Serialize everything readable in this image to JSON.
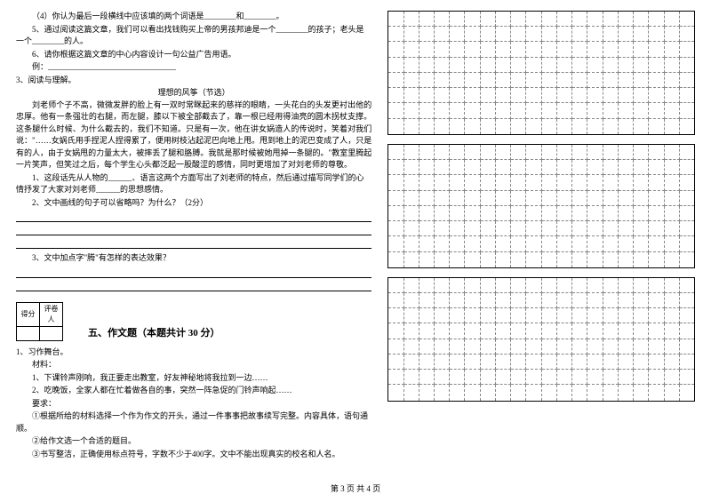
{
  "reading1": {
    "q4": "（4）你认为最后一段横线中应该填的两个词语是________和________。",
    "q5": "5、通过阅读这篇文章，我们可以看出找钱购买上帝的男孩邦迪是一个________的孩子；老头是一个________的人。",
    "q6": "6、请你根据这篇文章的中心内容设计一句公益广告用语。",
    "example": "例：________________________________"
  },
  "reading2": {
    "heading": "3、阅读与理解。",
    "title": "理想的风筝（节选）",
    "body": "刘老师个子不高，微微发胖的脸上有一双时常眯起来的慈祥的眼睛，一头花白的头发更衬出他的忠厚。他有一条强壮的右腿，而左腿，膝以下被全部截去了，靠一根已经用得油亮的圆木拐杖支撑。这条腿什么时候、为什么截去的，我们不知道。只是有一次，他在讲女娲造人的传说时，笑着对我们说：\"……女娲氏用手捏泥人捏得累了，便用树枝沾起泥巴向地上甩。甩到地上的泥巴变成了人，只是有的人，由于女娲甩的力量太大，被摔丢了腿和胳膊。我就是那时候被她甩掉一条腿的。\"教室里腾起一片笑声，但笑过之后，每个学生心头都泛起一股酸涩的感情，同时更增加了对刘老师的尊敬。",
    "q1": "1、这段话先从人物的______、语言这两个方面写出了刘老师的特点，然后通过描写同学们的心情抒发了大家对刘老师______的思想感情。",
    "q2": "2、文中画线的句子可以省略吗？为什么？（2分）",
    "q3": "3、文中加点字\"腾\"有怎样的表达效果？"
  },
  "section5": {
    "label_score": "得分",
    "label_grader": "评卷人",
    "title": "五、作文题（本题共计 30 分）",
    "q1": "1、习作舞台。",
    "material_label": "材料：",
    "m1": "1、下课铃声刚响，我正要走出教室，好友神秘地将我拉到一边……",
    "m2": "2、吃晚饭，全家人都在忙着做各自的事，突然一阵急促的门铃声响起……",
    "req_label": "要求：",
    "r1": "①根据所给的材料选择一个作为作文的开头，通过一件事事把故事续写完整。内容具体，语句通顺。",
    "r2": "②给作文选一个合适的题目。",
    "r3": "③书写整洁，正确使用标点符号，字数不少于400字。文中不能出现真实的校名和人名。"
  },
  "grid": {
    "cols": 20,
    "rows_box1": 8,
    "rows_box2": 8,
    "rows_box3": 8
  },
  "footer": "第 3 页  共 4 页",
  "style": {
    "font_size_body": 9,
    "font_size_title": 11,
    "text_color": "#000000",
    "bg_color": "#ffffff",
    "grid_dash_color": "#888888"
  }
}
